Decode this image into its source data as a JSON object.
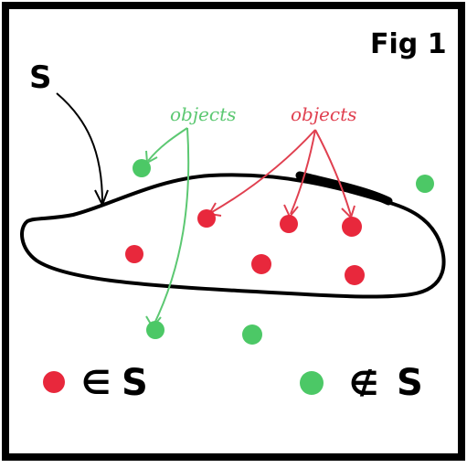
{
  "figure": {
    "fig_label": "Fig 1",
    "set_label": "S",
    "objects_green_label": "objects",
    "objects_red_label": "objects"
  },
  "legend": {
    "member_symbol": "∈",
    "member_set": "S",
    "nonmember_symbol": "∉",
    "nonmember_set": "S"
  },
  "colors": {
    "border": "#000000",
    "red": "#e8283c",
    "green": "#4cc866",
    "red_arrow": "#e04050",
    "green_arrow": "#5cc872"
  }
}
